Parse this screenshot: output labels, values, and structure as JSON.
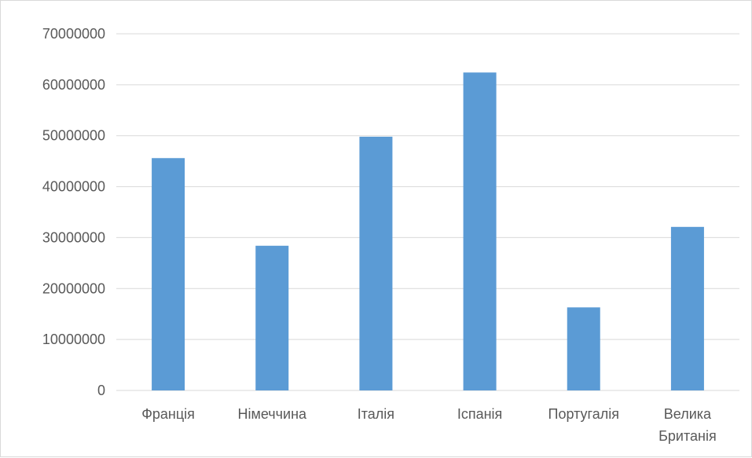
{
  "chart_data": {
    "type": "bar",
    "categories": [
      "Франція",
      "Німеччина",
      "Італія",
      "Іспанія",
      "Португалія",
      "Велика Британія"
    ],
    "category_lines": [
      [
        "Франція"
      ],
      [
        "Німеччина"
      ],
      [
        "Італія"
      ],
      [
        "Іспанія"
      ],
      [
        "Португалія"
      ],
      [
        "Велика",
        "Британія"
      ]
    ],
    "values": [
      45600000,
      28400000,
      49800000,
      62400000,
      16300000,
      32100000
    ],
    "ylim": [
      0,
      70000000
    ],
    "yticks": [
      0,
      10000000,
      20000000,
      30000000,
      40000000,
      50000000,
      60000000,
      70000000
    ],
    "grid": true,
    "legend": "none",
    "colors": {
      "bar": "#5b9bd5",
      "grid": "#d9d9d9",
      "axis": "#d9d9d9",
      "text": "#595959"
    }
  }
}
